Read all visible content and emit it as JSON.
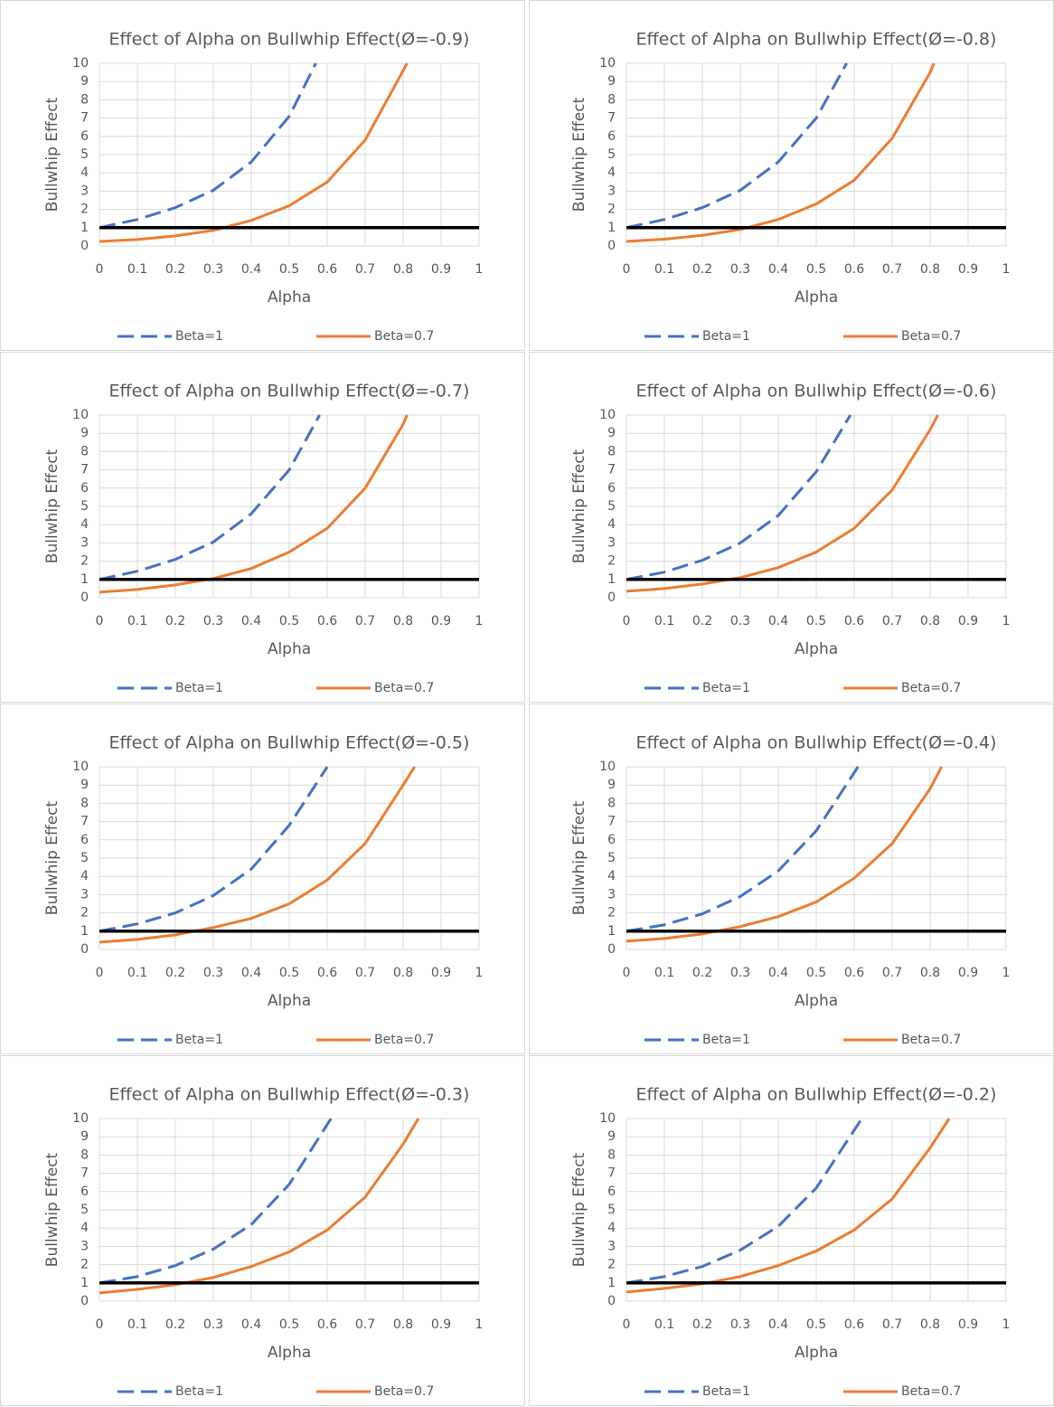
{
  "chart_data": [
    {
      "type": "line",
      "title": "Effect of Alpha on Bullwhip Effect(Ø=-0.9)",
      "x_label": "Alpha",
      "y_label": "Bullwhip Effect",
      "xlim": [
        0,
        1
      ],
      "xticks": [
        0,
        0.1,
        0.2,
        0.3,
        0.4,
        0.5,
        0.6,
        0.7,
        0.8,
        0.9,
        1
      ],
      "ylim": [
        0,
        10
      ],
      "yticks": [
        0,
        1,
        2,
        3,
        4,
        5,
        6,
        7,
        8,
        9,
        10
      ],
      "grid": true,
      "legend": "bottom",
      "hline": {
        "value": 1,
        "color": "#000000"
      },
      "series": [
        {
          "name": "Beta=1",
          "color": "#4472c4",
          "dashed": true,
          "x": [
            0,
            0.1,
            0.2,
            0.3,
            0.4,
            0.5,
            0.57
          ],
          "values": [
            1,
            1.45,
            2.1,
            3.05,
            4.6,
            7.1,
            10
          ]
        },
        {
          "name": "Beta=0.7",
          "color": "#ed7d31",
          "dashed": false,
          "x": [
            0,
            0.1,
            0.2,
            0.3,
            0.4,
            0.5,
            0.6,
            0.7,
            0.8,
            0.81
          ],
          "values": [
            0.25,
            0.35,
            0.55,
            0.85,
            1.4,
            2.2,
            3.5,
            5.8,
            9.6,
            10
          ]
        }
      ]
    },
    {
      "type": "line",
      "title": "Effect of Alpha on Bullwhip Effect(Ø=-0.8)",
      "x_label": "Alpha",
      "y_label": "Bullwhip Effect",
      "xlim": [
        0,
        1
      ],
      "xticks": [
        0,
        0.1,
        0.2,
        0.3,
        0.4,
        0.5,
        0.6,
        0.7,
        0.8,
        0.9,
        1
      ],
      "ylim": [
        0,
        10
      ],
      "yticks": [
        0,
        1,
        2,
        3,
        4,
        5,
        6,
        7,
        8,
        9,
        10
      ],
      "grid": true,
      "legend": "bottom",
      "hline": {
        "value": 1,
        "color": "#000000"
      },
      "series": [
        {
          "name": "Beta=1",
          "color": "#4472c4",
          "dashed": true,
          "x": [
            0,
            0.1,
            0.2,
            0.3,
            0.4,
            0.5,
            0.58
          ],
          "values": [
            1,
            1.45,
            2.1,
            3.05,
            4.6,
            7.0,
            10
          ]
        },
        {
          "name": "Beta=0.7",
          "color": "#ed7d31",
          "dashed": false,
          "x": [
            0,
            0.1,
            0.2,
            0.3,
            0.4,
            0.5,
            0.6,
            0.7,
            0.8,
            0.81
          ],
          "values": [
            0.25,
            0.37,
            0.58,
            0.9,
            1.45,
            2.3,
            3.6,
            5.9,
            9.5,
            10
          ]
        }
      ]
    },
    {
      "type": "line",
      "title": "Effect of Alpha on Bullwhip Effect(Ø=-0.7)",
      "x_label": "Alpha",
      "y_label": "Bullwhip Effect",
      "xlim": [
        0,
        1
      ],
      "xticks": [
        0,
        0.1,
        0.2,
        0.3,
        0.4,
        0.5,
        0.6,
        0.7,
        0.8,
        0.9,
        1
      ],
      "ylim": [
        0,
        10
      ],
      "yticks": [
        0,
        1,
        2,
        3,
        4,
        5,
        6,
        7,
        8,
        9,
        10
      ],
      "grid": true,
      "legend": "bottom",
      "hline": {
        "value": 1,
        "color": "#000000"
      },
      "series": [
        {
          "name": "Beta=1",
          "color": "#4472c4",
          "dashed": true,
          "x": [
            0,
            0.1,
            0.2,
            0.3,
            0.4,
            0.5,
            0.58
          ],
          "values": [
            1,
            1.45,
            2.1,
            3.05,
            4.6,
            7.0,
            10
          ]
        },
        {
          "name": "Beta=0.7",
          "color": "#ed7d31",
          "dashed": false,
          "x": [
            0,
            0.1,
            0.2,
            0.3,
            0.4,
            0.5,
            0.6,
            0.7,
            0.8,
            0.81
          ],
          "values": [
            0.3,
            0.45,
            0.7,
            1.05,
            1.6,
            2.5,
            3.8,
            6.0,
            9.5,
            10
          ]
        }
      ]
    },
    {
      "type": "line",
      "title": "Effect of Alpha on Bullwhip Effect(Ø=-0.6)",
      "x_label": "Alpha",
      "y_label": "Bullwhip Effect",
      "xlim": [
        0,
        1
      ],
      "xticks": [
        0,
        0.1,
        0.2,
        0.3,
        0.4,
        0.5,
        0.6,
        0.7,
        0.8,
        0.9,
        1
      ],
      "ylim": [
        0,
        10
      ],
      "yticks": [
        0,
        1,
        2,
        3,
        4,
        5,
        6,
        7,
        8,
        9,
        10
      ],
      "grid": true,
      "legend": "bottom",
      "hline": {
        "value": 1,
        "color": "#000000"
      },
      "series": [
        {
          "name": "Beta=1",
          "color": "#4472c4",
          "dashed": true,
          "x": [
            0,
            0.1,
            0.2,
            0.3,
            0.4,
            0.5,
            0.59
          ],
          "values": [
            1,
            1.4,
            2.05,
            3.0,
            4.5,
            6.9,
            10
          ]
        },
        {
          "name": "Beta=0.7",
          "color": "#ed7d31",
          "dashed": false,
          "x": [
            0,
            0.1,
            0.2,
            0.3,
            0.4,
            0.5,
            0.6,
            0.7,
            0.8,
            0.82
          ],
          "values": [
            0.35,
            0.5,
            0.75,
            1.1,
            1.65,
            2.5,
            3.8,
            5.9,
            9.2,
            10
          ]
        }
      ]
    },
    {
      "type": "line",
      "title": "Effect of Alpha on Bullwhip Effect(Ø=-0.5)",
      "x_label": "Alpha",
      "y_label": "Bullwhip Effect",
      "xlim": [
        0,
        1
      ],
      "xticks": [
        0,
        0.1,
        0.2,
        0.3,
        0.4,
        0.5,
        0.6,
        0.7,
        0.8,
        0.9,
        1
      ],
      "ylim": [
        0,
        10
      ],
      "yticks": [
        0,
        1,
        2,
        3,
        4,
        5,
        6,
        7,
        8,
        9,
        10
      ],
      "grid": true,
      "legend": "bottom",
      "hline": {
        "value": 1,
        "color": "#000000"
      },
      "series": [
        {
          "name": "Beta=1",
          "color": "#4472c4",
          "dashed": true,
          "x": [
            0,
            0.1,
            0.2,
            0.3,
            0.4,
            0.5,
            0.6
          ],
          "values": [
            1,
            1.4,
            2.0,
            2.95,
            4.4,
            6.8,
            10
          ]
        },
        {
          "name": "Beta=0.7",
          "color": "#ed7d31",
          "dashed": false,
          "x": [
            0,
            0.1,
            0.2,
            0.3,
            0.4,
            0.5,
            0.6,
            0.7,
            0.8,
            0.83
          ],
          "values": [
            0.4,
            0.55,
            0.8,
            1.2,
            1.7,
            2.5,
            3.8,
            5.8,
            9.0,
            10
          ]
        }
      ]
    },
    {
      "type": "line",
      "title": "Effect of Alpha on Bullwhip Effect(Ø=-0.4)",
      "x_label": "Alpha",
      "y_label": "Bullwhip Effect",
      "xlim": [
        0,
        1
      ],
      "xticks": [
        0,
        0.1,
        0.2,
        0.3,
        0.4,
        0.5,
        0.6,
        0.7,
        0.8,
        0.9,
        1
      ],
      "ylim": [
        0,
        10
      ],
      "yticks": [
        0,
        1,
        2,
        3,
        4,
        5,
        6,
        7,
        8,
        9,
        10
      ],
      "grid": true,
      "legend": "bottom",
      "hline": {
        "value": 1,
        "color": "#000000"
      },
      "series": [
        {
          "name": "Beta=1",
          "color": "#4472c4",
          "dashed": true,
          "x": [
            0,
            0.1,
            0.2,
            0.3,
            0.4,
            0.5,
            0.61
          ],
          "values": [
            1,
            1.35,
            1.95,
            2.9,
            4.3,
            6.5,
            10
          ]
        },
        {
          "name": "Beta=0.7",
          "color": "#ed7d31",
          "dashed": false,
          "x": [
            0,
            0.1,
            0.2,
            0.3,
            0.4,
            0.5,
            0.6,
            0.7,
            0.8,
            0.83
          ],
          "values": [
            0.45,
            0.6,
            0.85,
            1.25,
            1.8,
            2.6,
            3.9,
            5.8,
            8.8,
            10
          ]
        }
      ]
    },
    {
      "type": "line",
      "title": "Effect of Alpha on Bullwhip Effect(Ø=-0.3)",
      "x_label": "Alpha",
      "y_label": "Bullwhip Effect",
      "xlim": [
        0,
        1
      ],
      "xticks": [
        0,
        0.1,
        0.2,
        0.3,
        0.4,
        0.5,
        0.6,
        0.7,
        0.8,
        0.9,
        1
      ],
      "ylim": [
        0,
        10
      ],
      "yticks": [
        0,
        1,
        2,
        3,
        4,
        5,
        6,
        7,
        8,
        9,
        10
      ],
      "grid": true,
      "legend": "bottom",
      "hline": {
        "value": 1,
        "color": "#000000"
      },
      "series": [
        {
          "name": "Beta=1",
          "color": "#4472c4",
          "dashed": true,
          "x": [
            0,
            0.1,
            0.2,
            0.3,
            0.4,
            0.5,
            0.61
          ],
          "values": [
            1,
            1.35,
            1.95,
            2.85,
            4.2,
            6.4,
            10
          ]
        },
        {
          "name": "Beta=0.7",
          "color": "#ed7d31",
          "dashed": false,
          "x": [
            0,
            0.1,
            0.2,
            0.3,
            0.4,
            0.5,
            0.6,
            0.7,
            0.8,
            0.84
          ],
          "values": [
            0.45,
            0.65,
            0.9,
            1.3,
            1.9,
            2.7,
            3.9,
            5.7,
            8.6,
            10
          ]
        }
      ]
    },
    {
      "type": "line",
      "title": "Effect of Alpha on Bullwhip Effect(Ø=-0.2)",
      "x_label": "Alpha",
      "y_label": "Bullwhip Effect",
      "xlim": [
        0,
        1
      ],
      "xticks": [
        0,
        0.1,
        0.2,
        0.3,
        0.4,
        0.5,
        0.6,
        0.7,
        0.8,
        0.9,
        1
      ],
      "ylim": [
        0,
        10
      ],
      "yticks": [
        0,
        1,
        2,
        3,
        4,
        5,
        6,
        7,
        8,
        9,
        10
      ],
      "grid": true,
      "legend": "bottom",
      "hline": {
        "value": 1,
        "color": "#000000"
      },
      "series": [
        {
          "name": "Beta=1",
          "color": "#4472c4",
          "dashed": true,
          "x": [
            0,
            0.1,
            0.2,
            0.3,
            0.4,
            0.5,
            0.62
          ],
          "values": [
            1,
            1.35,
            1.9,
            2.8,
            4.1,
            6.2,
            10
          ]
        },
        {
          "name": "Beta=0.7",
          "color": "#ed7d31",
          "dashed": false,
          "x": [
            0,
            0.1,
            0.2,
            0.3,
            0.4,
            0.5,
            0.6,
            0.7,
            0.8,
            0.85
          ],
          "values": [
            0.5,
            0.7,
            0.95,
            1.35,
            1.95,
            2.75,
            3.9,
            5.6,
            8.4,
            10
          ]
        }
      ]
    }
  ]
}
